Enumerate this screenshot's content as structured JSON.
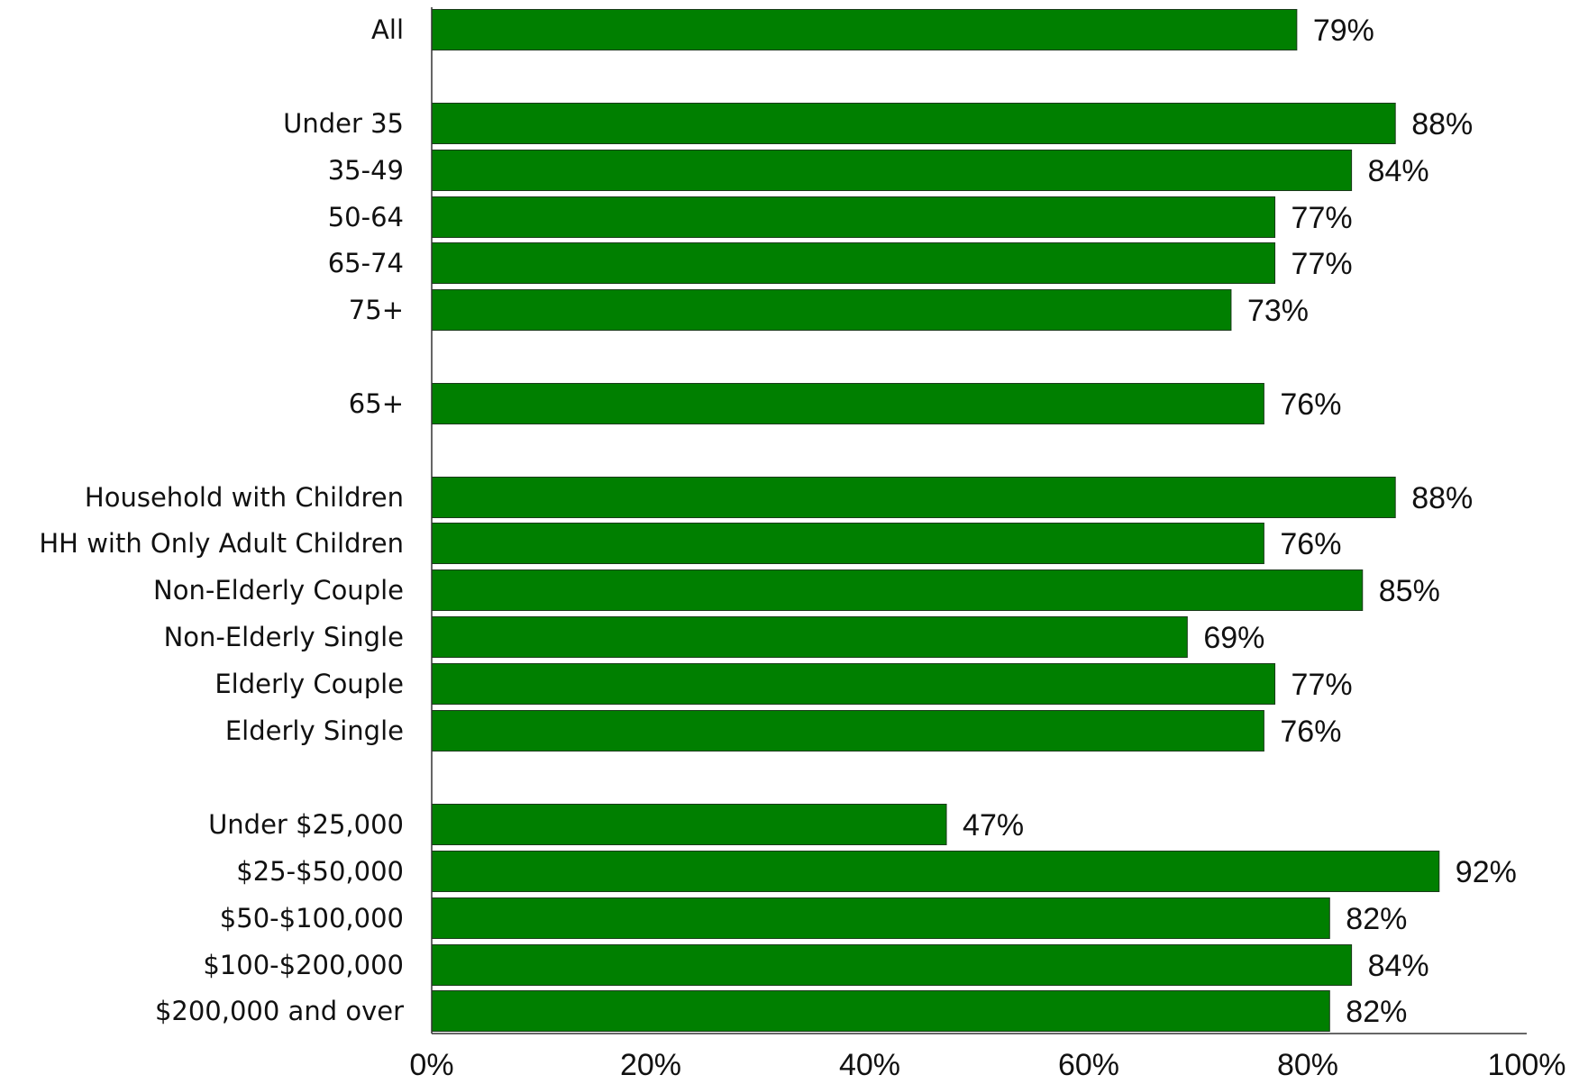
{
  "chart_data": {
    "type": "bar",
    "orientation": "horizontal",
    "categories": [
      "All",
      "Under 35",
      "35-49",
      "50-64",
      "65-74",
      "75+",
      "65+",
      "Household with Children",
      "HH with Only Adult Children",
      "Non-Elderly Couple",
      "Non-Elderly Single",
      "Elderly Couple",
      "Elderly Single",
      "Under $25,000",
      "$25-$50,000",
      "$50-$100,000",
      "$100-$200,000",
      "$200,000 and over"
    ],
    "values": [
      79,
      88,
      84,
      77,
      77,
      73,
      76,
      88,
      76,
      85,
      69,
      77,
      76,
      47,
      92,
      82,
      84,
      82
    ],
    "value_labels": [
      "79%",
      "88%",
      "84%",
      "77%",
      "77%",
      "73%",
      "76%",
      "88%",
      "76%",
      "85%",
      "69%",
      "77%",
      "76%",
      "47%",
      "92%",
      "82%",
      "84%",
      "82%"
    ],
    "groups": [
      [
        0
      ],
      [
        1,
        2,
        3,
        4,
        5
      ],
      [
        6
      ],
      [
        7,
        8,
        9,
        10,
        11,
        12
      ],
      [
        13,
        14,
        15,
        16,
        17
      ]
    ],
    "x_ticks": [
      "0%",
      "20%",
      "40%",
      "60%",
      "80%",
      "100%"
    ],
    "xlim": [
      0,
      100
    ],
    "bar_color": "#007f00",
    "title": "",
    "xlabel": "",
    "ylabel": "",
    "grid": false,
    "legend": "none"
  }
}
